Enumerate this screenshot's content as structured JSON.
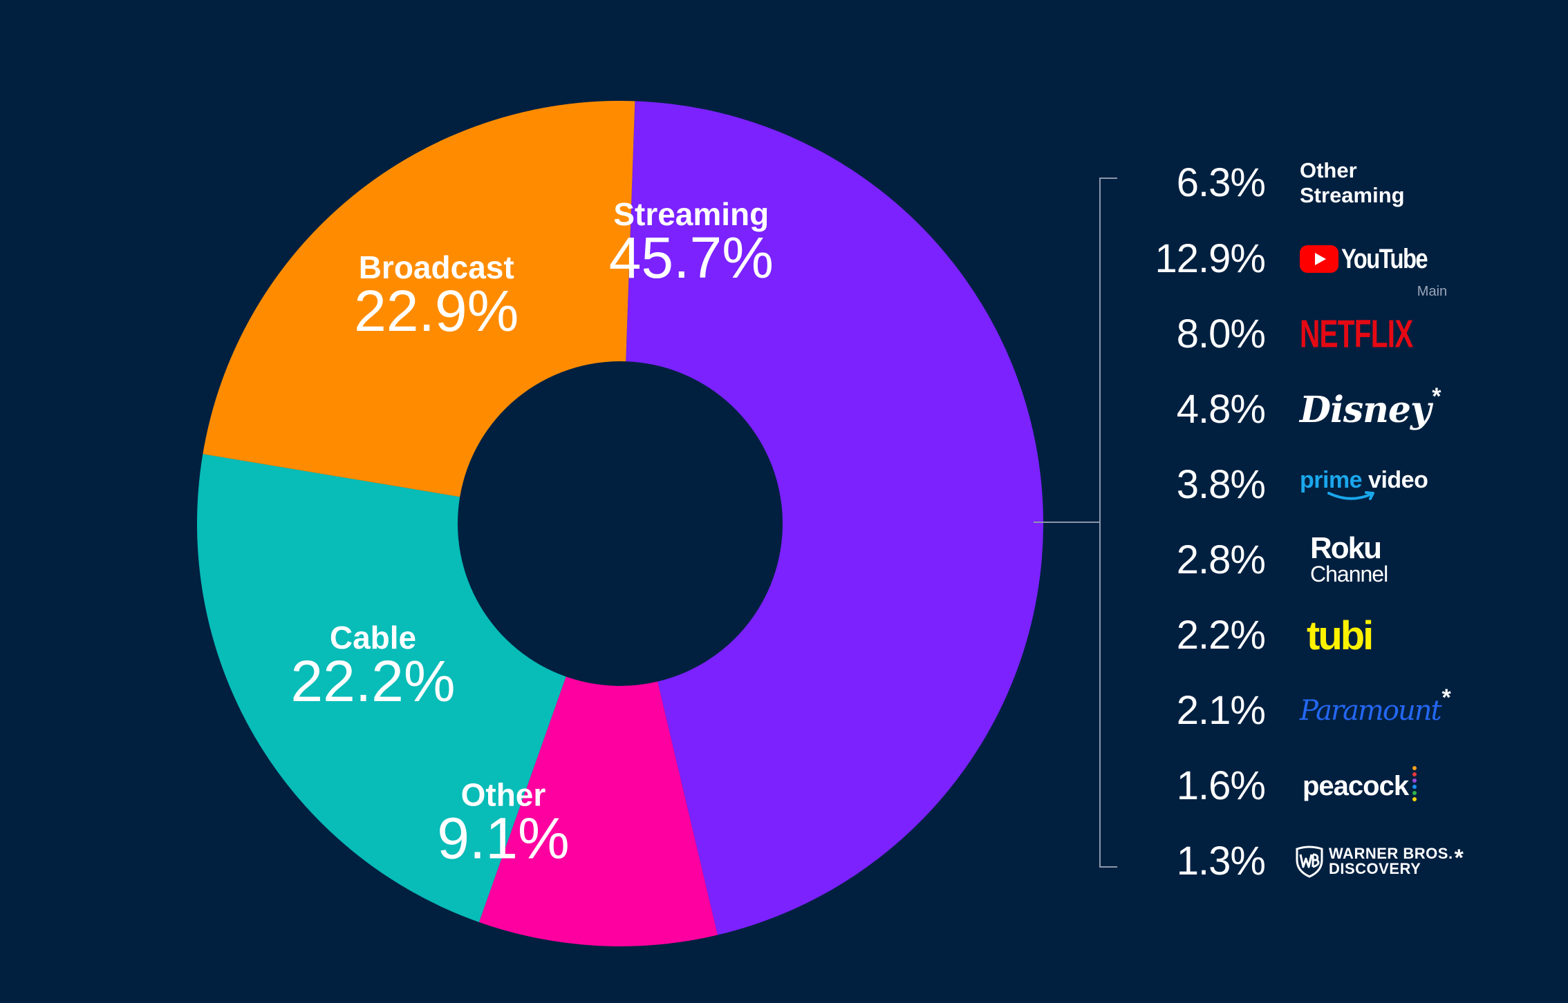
{
  "chart_data": {
    "type": "pie",
    "style": "donut",
    "slices": [
      {
        "label": "Streaming",
        "value": 45.7,
        "display": "45.7%",
        "color": "#7b22ff"
      },
      {
        "label": "Other",
        "value": 9.1,
        "display": "9.1%",
        "color": "#ff00a0"
      },
      {
        "label": "Cable",
        "value": 22.2,
        "display": "22.2%",
        "color": "#08bcb8"
      },
      {
        "label": "Broadcast",
        "value": 22.9,
        "display": "22.9%",
        "color": "#ff8c00"
      }
    ],
    "streaming_breakdown": [
      {
        "brand": "Other Streaming",
        "value": 6.3,
        "display": "6.3%"
      },
      {
        "brand": "YouTube",
        "value": 12.9,
        "display": "12.9%"
      },
      {
        "brand": "Netflix",
        "value": 8.0,
        "display": "8.0%"
      },
      {
        "brand": "Disney",
        "value": 4.8,
        "display": "4.8%"
      },
      {
        "brand": "Prime Video",
        "value": 3.8,
        "display": "3.8%"
      },
      {
        "brand": "Roku Channel",
        "value": 2.8,
        "display": "2.8%"
      },
      {
        "brand": "Tubi",
        "value": 2.2,
        "display": "2.2%"
      },
      {
        "brand": "Paramount",
        "value": 2.1,
        "display": "2.1%"
      },
      {
        "brand": "Peacock",
        "value": 1.6,
        "display": "1.6%"
      },
      {
        "brand": "Warner Bros. Discovery",
        "value": 1.3,
        "display": "1.3%"
      }
    ]
  },
  "brands": {
    "other_streaming": {
      "line1": "Other",
      "line2": "Streaming"
    },
    "youtube": {
      "name": "YouTube",
      "sub": "Main"
    },
    "netflix": {
      "name": "NETFLIX"
    },
    "disney": {
      "name": "Disney",
      "asterisk": "*"
    },
    "prime": {
      "name1": "prime",
      "name2": "video"
    },
    "roku": {
      "line1": "Roku",
      "line2": "Channel"
    },
    "tubi": {
      "name": "tubi"
    },
    "paramount": {
      "name": "Paramount",
      "asterisk": "*"
    },
    "peacock": {
      "name": "peacock"
    },
    "wbd": {
      "line1": "WARNER BROS.",
      "line2": "DISCOVERY",
      "asterisk": "*"
    }
  },
  "colors": {
    "background": "#012040",
    "bracket": "#8c98ab",
    "netflix": "#e50914",
    "youtube": "#ff0000",
    "tubi": "#fff200",
    "paramount": "#2467f2",
    "prime": "#1aa7ec"
  }
}
